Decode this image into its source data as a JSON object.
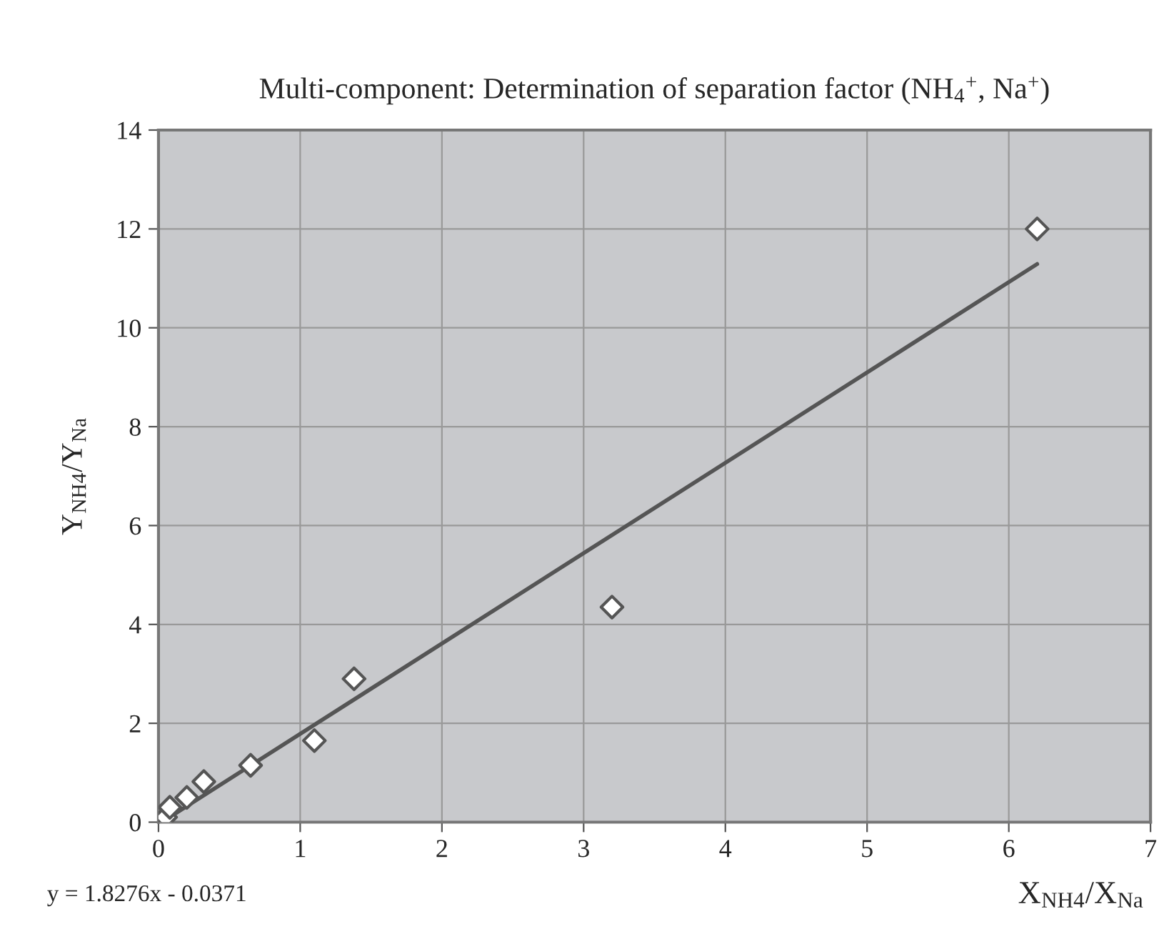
{
  "chart_data": {
    "type": "scatter",
    "title": "Multi-component: Determination of separation factor (NH$_{4}$$^{+}$, Na$^{+}$)",
    "xlabel": "X$_{NH4}$/X$_{Na}$",
    "ylabel": "Y$_{NH4}$/Y$_{Na}$",
    "series": [
      {
        "color": "#ffffff",
        "marker": "diamond",
        "x": [
          0.05,
          0.08,
          0.2,
          0.32,
          0.65,
          1.1,
          1.38,
          3.2,
          6.2
        ],
        "values": [
          0.1,
          0.3,
          0.5,
          0.82,
          1.15,
          1.65,
          2.9,
          4.35,
          12
        ]
      },
      {
        "type": "line",
        "color": "#555555",
        "line_style": "solid",
        "marker": "none",
        "x": [
          0.05,
          6.2
        ],
        "values": [
          0.05,
          11.29
        ]
      }
    ],
    "xlim": [
      0,
      7
    ],
    "xticks": [
      0,
      1,
      2,
      3,
      4,
      5,
      6,
      7
    ],
    "ylim": [
      0,
      14
    ],
    "yticks": [
      0,
      2,
      4,
      6,
      8,
      10,
      12,
      14
    ],
    "grid": true,
    "annotations": [
      "y = 1.8276x - 0.0371"
    ]
  }
}
